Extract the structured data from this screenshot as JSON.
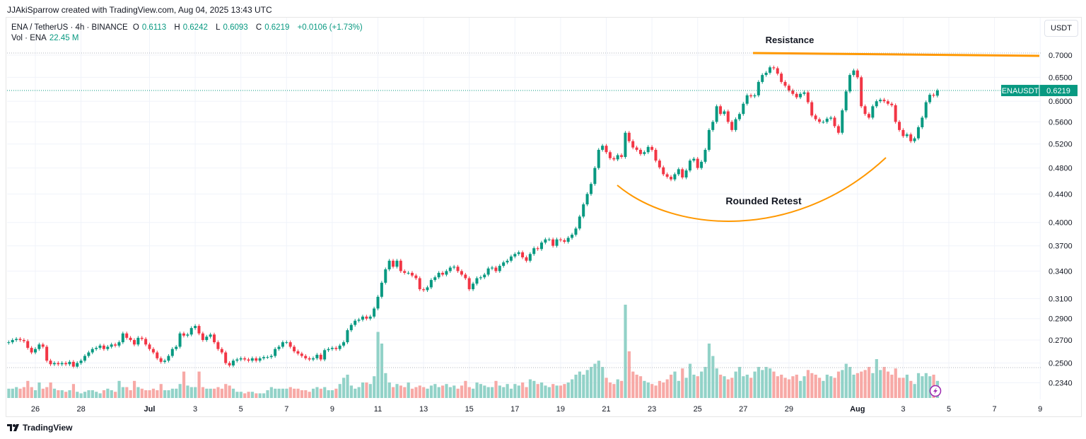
{
  "credit": "JJAkiSparrow created with TradingView.com, Aug 04, 2025 13:43 UTC",
  "legend": {
    "symbol": "ENA / TetherUS · 4h · BINANCE",
    "open_label": "O",
    "open": "0.6113",
    "high_label": "H",
    "high": "0.6242",
    "low_label": "L",
    "low": "0.6093",
    "close_label": "C",
    "close": "0.6219",
    "change": "+0.0106 (+1.73%)",
    "vol_label": "Vol · ENA",
    "vol_value": "22.45 M"
  },
  "currency_button": "USDT",
  "price_tag": {
    "symbol": "ENAUSDT",
    "price": "0.6219"
  },
  "annotations": {
    "resistance": "Resistance",
    "retest": "Rounded Retest"
  },
  "logo_text": "TradingView",
  "colors": {
    "up": "#089981",
    "down": "#f23645",
    "up_vol": "#92d2c8",
    "down_vol": "#f7a9a6",
    "annotation": "#ff9800"
  },
  "icons": {
    "alert": "lightning-icon",
    "logo": "tradingview-logo-icon"
  },
  "chart_data": {
    "type": "candlestick",
    "interval": "4h",
    "first_candle": "Jun 24 20:00",
    "last_candle": "Aug 04 12:00",
    "y_scale": "log",
    "y_ticks": [
      "0.7000",
      "0.6500",
      "0.6000",
      "0.5600",
      "0.5200",
      "0.4800",
      "0.4400",
      "0.4000",
      "0.3700",
      "0.3400",
      "0.3100",
      "0.2900",
      "0.2700",
      "0.2500",
      "0.2340"
    ],
    "x_ticks": [
      "26",
      "28",
      "Jul",
      "3",
      "5",
      "7",
      "9",
      "11",
      "13",
      "15",
      "17",
      "19",
      "21",
      "23",
      "25",
      "27",
      "29",
      "Aug",
      "3",
      "5",
      "7",
      "9"
    ],
    "grid": true,
    "resistance_level": 0.7,
    "closes": [
      0.268,
      0.27,
      0.271,
      0.27,
      0.269,
      0.263,
      0.259,
      0.262,
      0.266,
      0.264,
      0.252,
      0.249,
      0.25,
      0.249,
      0.25,
      0.249,
      0.251,
      0.247,
      0.25,
      0.252,
      0.256,
      0.259,
      0.262,
      0.263,
      0.265,
      0.262,
      0.264,
      0.266,
      0.265,
      0.268,
      0.276,
      0.272,
      0.27,
      0.266,
      0.272,
      0.271,
      0.266,
      0.262,
      0.259,
      0.254,
      0.251,
      0.252,
      0.256,
      0.262,
      0.264,
      0.276,
      0.274,
      0.275,
      0.281,
      0.283,
      0.276,
      0.27,
      0.273,
      0.275,
      0.268,
      0.262,
      0.259,
      0.25,
      0.248,
      0.252,
      0.253,
      0.254,
      0.253,
      0.252,
      0.254,
      0.252,
      0.254,
      0.255,
      0.255,
      0.256,
      0.262,
      0.264,
      0.268,
      0.268,
      0.264,
      0.26,
      0.258,
      0.256,
      0.254,
      0.253,
      0.254,
      0.257,
      0.253,
      0.261,
      0.262,
      0.263,
      0.262,
      0.265,
      0.268,
      0.279,
      0.284,
      0.288,
      0.289,
      0.292,
      0.29,
      0.292,
      0.3,
      0.312,
      0.327,
      0.342,
      0.352,
      0.345,
      0.352,
      0.34,
      0.338,
      0.338,
      0.335,
      0.332,
      0.32,
      0.319,
      0.322,
      0.33,
      0.333,
      0.338,
      0.336,
      0.34,
      0.344,
      0.345,
      0.34,
      0.336,
      0.332,
      0.32,
      0.326,
      0.332,
      0.333,
      0.336,
      0.343,
      0.344,
      0.34,
      0.346,
      0.35,
      0.352,
      0.357,
      0.36,
      0.362,
      0.356,
      0.352,
      0.36,
      0.367,
      0.366,
      0.374,
      0.378,
      0.378,
      0.37,
      0.378,
      0.377,
      0.375,
      0.38,
      0.384,
      0.392,
      0.408,
      0.425,
      0.44,
      0.455,
      0.48,
      0.51,
      0.517,
      0.506,
      0.496,
      0.494,
      0.501,
      0.498,
      0.54,
      0.525,
      0.514,
      0.51,
      0.503,
      0.506,
      0.515,
      0.51,
      0.492,
      0.481,
      0.47,
      0.466,
      0.462,
      0.47,
      0.478,
      0.465,
      0.476,
      0.492,
      0.495,
      0.48,
      0.49,
      0.51,
      0.545,
      0.56,
      0.59,
      0.575,
      0.58,
      0.56,
      0.545,
      0.565,
      0.575,
      0.595,
      0.612,
      0.61,
      0.612,
      0.64,
      0.655,
      0.66,
      0.672,
      0.67,
      0.658,
      0.64,
      0.632,
      0.622,
      0.615,
      0.608,
      0.615,
      0.618,
      0.598,
      0.572,
      0.565,
      0.56,
      0.56,
      0.566,
      0.568,
      0.552,
      0.54,
      0.582,
      0.62,
      0.655,
      0.665,
      0.65,
      0.59,
      0.575,
      0.568,
      0.59,
      0.6,
      0.603,
      0.6,
      0.595,
      0.592,
      0.56,
      0.545,
      0.534,
      0.537,
      0.525,
      0.53,
      0.55,
      0.568,
      0.598,
      0.613,
      0.6113,
      0.6219
    ],
    "volumes_m": [
      12,
      12,
      14,
      12,
      14,
      22,
      14,
      10,
      20,
      12,
      14,
      20,
      12,
      10,
      10,
      8,
      10,
      18,
      8,
      6,
      8,
      10,
      10,
      8,
      6,
      10,
      12,
      10,
      8,
      22,
      14,
      14,
      10,
      22,
      14,
      12,
      10,
      10,
      12,
      10,
      18,
      10,
      10,
      12,
      12,
      18,
      34,
      16,
      14,
      14,
      34,
      14,
      12,
      12,
      12,
      14,
      12,
      18,
      16,
      12,
      8,
      8,
      6,
      8,
      8,
      6,
      6,
      6,
      10,
      14,
      12,
      12,
      12,
      12,
      14,
      12,
      12,
      10,
      10,
      8,
      12,
      14,
      12,
      14,
      10,
      10,
      12,
      18,
      26,
      30,
      16,
      12,
      14,
      20,
      20,
      18,
      28,
      85,
      70,
      32,
      20,
      14,
      18,
      16,
      14,
      20,
      12,
      14,
      16,
      14,
      12,
      16,
      18,
      14,
      16,
      18,
      14,
      16,
      12,
      16,
      22,
      14,
      12,
      20,
      18,
      16,
      14,
      14,
      22,
      16,
      14,
      18,
      12,
      18,
      16,
      20,
      14,
      24,
      22,
      18,
      20,
      16,
      14,
      18,
      16,
      16,
      18,
      20,
      24,
      30,
      34,
      30,
      36,
      40,
      44,
      48,
      40,
      26,
      20,
      18,
      24,
      22,
      120,
      60,
      34,
      30,
      28,
      22,
      20,
      18,
      16,
      22,
      20,
      24,
      30,
      34,
      22,
      38,
      26,
      44,
      30,
      28,
      34,
      40,
      70,
      54,
      38,
      30,
      28,
      24,
      26,
      34,
      40,
      28,
      30,
      26,
      34,
      40,
      36,
      40,
      38,
      34,
      28,
      30,
      26,
      24,
      28,
      30,
      22,
      28,
      36,
      32,
      30,
      26,
      22,
      30,
      28,
      26,
      34,
      36,
      44,
      40,
      30,
      32,
      34,
      36,
      40,
      32,
      50,
      36,
      40,
      34,
      30,
      38,
      26,
      26,
      30,
      22,
      18,
      32,
      28,
      32,
      28,
      30,
      22
    ]
  }
}
